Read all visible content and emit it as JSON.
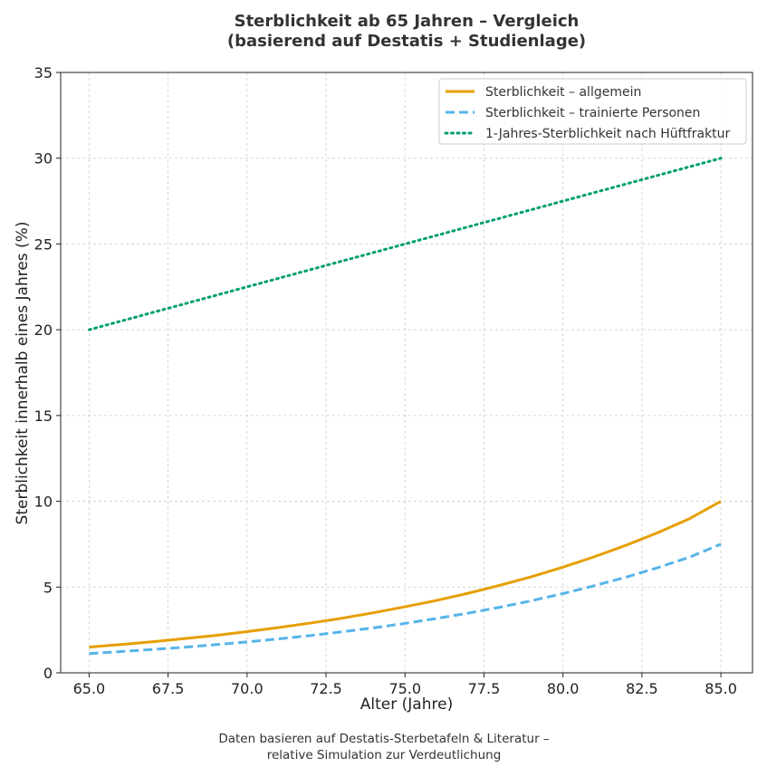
{
  "chart_data": {
    "type": "line",
    "title_lines": [
      "Sterblichkeit ab 65 Jahren – Vergleich",
      "(basierend auf Destatis + Studienlage)"
    ],
    "xlabel": "Alter (Jahre)",
    "ylabel": "Sterblichkeit innerhalb eines Jahres (%)",
    "xlim": [
      64.1,
      86.0
    ],
    "ylim": [
      0,
      35
    ],
    "xticks": [
      65.0,
      67.5,
      70.0,
      72.5,
      75.0,
      77.5,
      80.0,
      82.5,
      85.0
    ],
    "xtick_labels": [
      "65.0",
      "67.5",
      "70.0",
      "72.5",
      "75.0",
      "77.5",
      "80.0",
      "82.5",
      "85.0"
    ],
    "yticks": [
      0,
      5,
      10,
      15,
      20,
      25,
      30,
      35
    ],
    "ytick_labels": [
      "0",
      "5",
      "10",
      "15",
      "20",
      "25",
      "30",
      "35"
    ],
    "grid": true,
    "legend_position": "top-right",
    "x": [
      65,
      66,
      67,
      68,
      69,
      70,
      71,
      72,
      73,
      74,
      75,
      76,
      77,
      78,
      79,
      80,
      81,
      82,
      83,
      84,
      85
    ],
    "series": [
      {
        "name": "Sterblichkeit – allgemein",
        "color": "#E69F00",
        "style": "solid",
        "values": [
          1.5,
          1.65,
          1.81,
          1.99,
          2.18,
          2.4,
          2.64,
          2.9,
          3.18,
          3.5,
          3.85,
          4.22,
          4.64,
          5.1,
          5.6,
          6.16,
          6.77,
          7.44,
          8.17,
          8.98,
          10.0
        ]
      },
      {
        "name": "Sterblichkeit – trainierte Personen",
        "color": "#56B4E9",
        "style": "dashed",
        "values": [
          1.12,
          1.24,
          1.36,
          1.49,
          1.64,
          1.8,
          1.98,
          2.17,
          2.39,
          2.62,
          2.88,
          3.17,
          3.48,
          3.82,
          4.2,
          4.62,
          5.08,
          5.58,
          6.13,
          6.74,
          7.5
        ]
      },
      {
        "name": "1-Jahres-Sterblichkeit nach Hüftfraktur",
        "color": "#009E73",
        "style": "dotted",
        "values": [
          20.0,
          20.5,
          21.0,
          21.5,
          22.0,
          22.5,
          23.0,
          23.5,
          24.0,
          24.5,
          25.0,
          25.5,
          26.0,
          26.5,
          27.0,
          27.5,
          28.0,
          28.5,
          29.0,
          29.5,
          30.0
        ]
      }
    ],
    "footnote_lines": [
      "Daten basieren auf Destatis-Sterbetafeln & Literatur –",
      "relative Simulation zur Verdeutlichung"
    ]
  }
}
